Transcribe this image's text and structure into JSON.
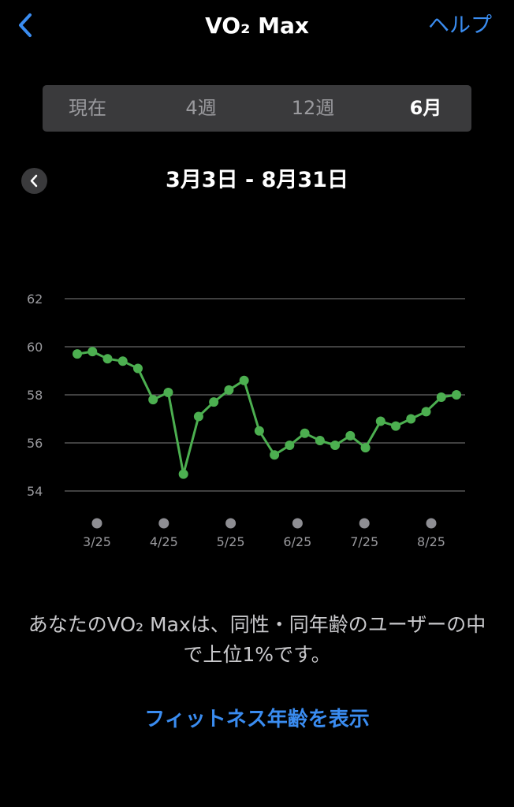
{
  "nav": {
    "title": "VO₂ Max",
    "help_label": "ヘルプ"
  },
  "segments": [
    {
      "label": "現在",
      "active": false
    },
    {
      "label": "4週",
      "active": false
    },
    {
      "label": "12週",
      "active": false
    },
    {
      "label": "6月",
      "active": true
    }
  ],
  "range": {
    "title": "3月3日 - 8月31日"
  },
  "chart_data": {
    "type": "line",
    "ylim": [
      54,
      62
    ],
    "yticks": [
      "62",
      "60",
      "58",
      "56",
      "54"
    ],
    "grid": true,
    "xlabels": [
      "3/25",
      "4/25",
      "5/25",
      "6/25",
      "7/25",
      "8/25"
    ],
    "line_color": "#4caf50",
    "series": [
      {
        "values": [
          59.7,
          59.8,
          59.5,
          59.4,
          59.1,
          57.8,
          58.1,
          54.7,
          57.1,
          57.7,
          58.2,
          58.6,
          56.5,
          55.5,
          55.9,
          56.4,
          56.1,
          55.9,
          56.3,
          55.8,
          56.9,
          56.7,
          57.0,
          57.3,
          57.9,
          58.0
        ]
      }
    ]
  },
  "message": "あなたのVO₂ Maxは、同性・同年齢のユーザーの中で上位1%です。",
  "link_label": "フィットネス年齢を表示"
}
